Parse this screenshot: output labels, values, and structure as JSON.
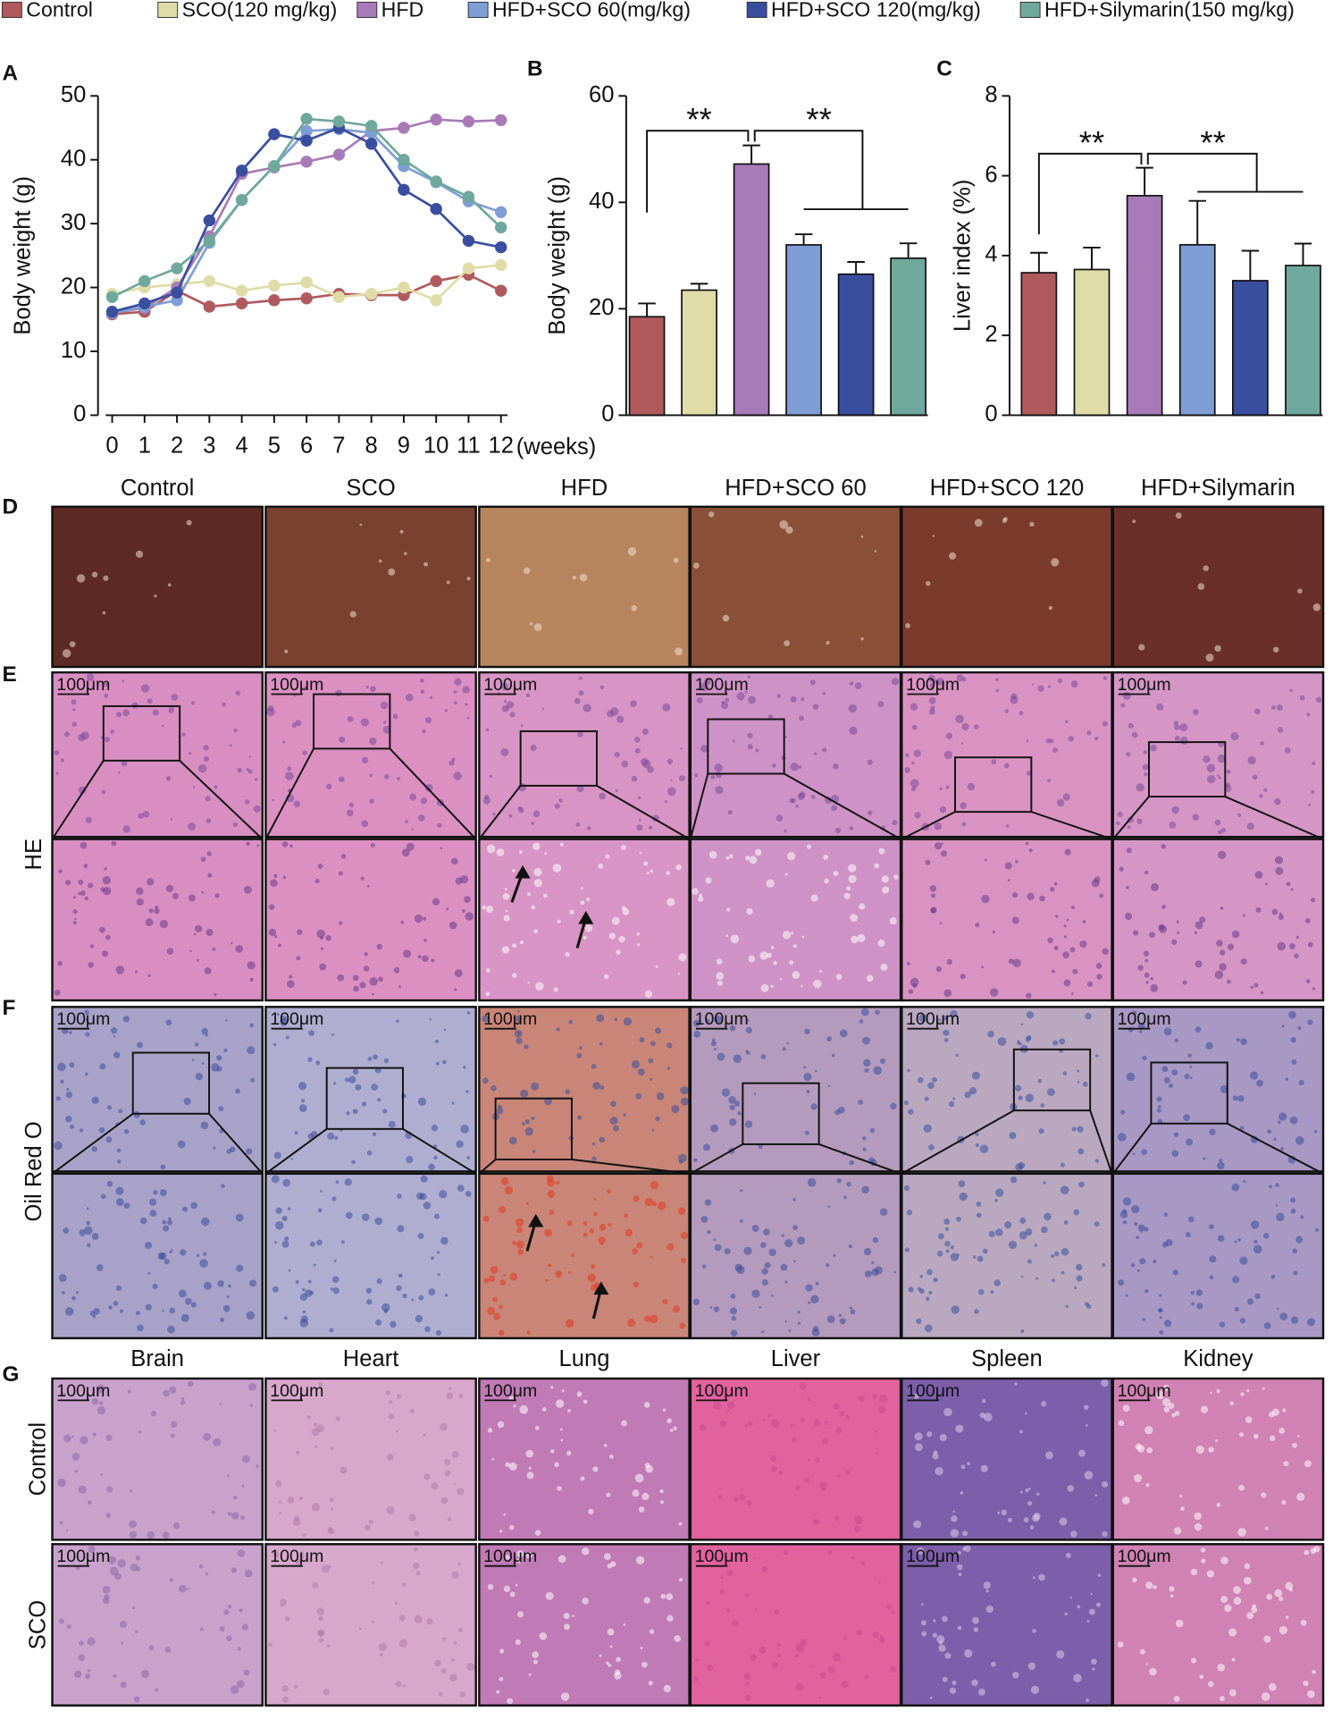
{
  "chart_data": [
    {
      "type": "line",
      "ylabel": "Body weight (g)",
      "xlabel": "(weeks)",
      "x": [
        0,
        1,
        2,
        3,
        4,
        5,
        6,
        7,
        8,
        9,
        10,
        11,
        12
      ],
      "xlim": [
        0,
        12
      ],
      "xticks": [
        0,
        1,
        2,
        3,
        4,
        5,
        6,
        7,
        8,
        9,
        10,
        11,
        12
      ],
      "ylim": [
        0,
        50
      ],
      "yticks": [
        0,
        10,
        20,
        30,
        40,
        50
      ],
      "series": [
        {
          "name": "Control",
          "color": "#b05a5e",
          "values": [
            15.8,
            16.2,
            19.5,
            17,
            17.5,
            18,
            18.3,
            19,
            18.8,
            18.8,
            21,
            22,
            19.5
          ]
        },
        {
          "name": "SCO(120 mg/kg)",
          "color": "#e0dca8",
          "values": [
            19,
            20,
            20.5,
            21,
            19.5,
            20.3,
            20.8,
            18.5,
            19,
            20,
            18,
            23,
            23.5
          ]
        },
        {
          "name": "HFD",
          "color": "#a87bb8",
          "values": [
            16,
            16.8,
            20,
            28,
            37.8,
            38.8,
            39.7,
            40.8,
            44.5,
            45,
            46.3,
            46,
            46.2
          ]
        },
        {
          "name": "HFD+SCO 60(mg/kg)",
          "color": "#7f9ed6",
          "values": [
            16,
            17,
            18,
            27,
            33.7,
            39,
            44.5,
            44.8,
            44.2,
            39,
            36.5,
            33.5,
            31.8
          ]
        },
        {
          "name": "HFD+SCO 120(mg/kg)",
          "color": "#3a4ea0",
          "values": [
            16.2,
            17.5,
            19.2,
            30.5,
            38.3,
            44,
            43,
            45,
            42.5,
            35.3,
            32.3,
            27.3,
            26.3
          ]
        },
        {
          "name": "HFD+Silymarin(150 mg/kg)",
          "color": "#6fa89d",
          "values": [
            18.5,
            21,
            23,
            27.3,
            33.7,
            39,
            46.4,
            46,
            45.3,
            40,
            36.6,
            34.2,
            29.4
          ]
        }
      ]
    },
    {
      "type": "bar",
      "ylabel": "Body weight (g)",
      "ylim": [
        0,
        60
      ],
      "yticks": [
        0,
        20,
        40,
        60
      ],
      "values": [
        18.5,
        23.5,
        47.2,
        32,
        26.5,
        29.5
      ],
      "errors": [
        2.5,
        1.2,
        3.5,
        2,
        2.3,
        2.8
      ],
      "colors": [
        "#b05a5e",
        "#e0dca8",
        "#a87bb8",
        "#7f9ed6",
        "#3a4ea0",
        "#6fa89d"
      ],
      "annotations": [
        "**",
        "**"
      ]
    },
    {
      "type": "bar",
      "ylabel": "Liver index (%)",
      "ylim": [
        0,
        8
      ],
      "yticks": [
        0,
        2,
        4,
        6,
        8
      ],
      "values": [
        3.57,
        3.65,
        5.5,
        4.27,
        3.37,
        3.75
      ],
      "errors": [
        0.5,
        0.55,
        0.7,
        1.1,
        0.75,
        0.55
      ],
      "colors": [
        "#b05a5e",
        "#e0dca8",
        "#a87bb8",
        "#7f9ed6",
        "#3a4ea0",
        "#6fa89d"
      ],
      "annotations": [
        "**",
        "**"
      ]
    }
  ],
  "panel_letters": [
    "A",
    "B",
    "C",
    "D",
    "E",
    "F",
    "G"
  ],
  "photo_columns": [
    "Control",
    "SCO",
    "HFD",
    "HFD+SCO 60",
    "HFD+SCO 120",
    "HFD+Silymarin"
  ],
  "stain_rows": [
    "HE",
    "Oil Red O"
  ],
  "organ_columns": [
    "Brain",
    "Heart",
    "Lung",
    "Liver",
    "Spleen",
    "Kidney"
  ],
  "organ_rows": [
    "Control",
    "SCO"
  ],
  "scale_bar": "100μm"
}
